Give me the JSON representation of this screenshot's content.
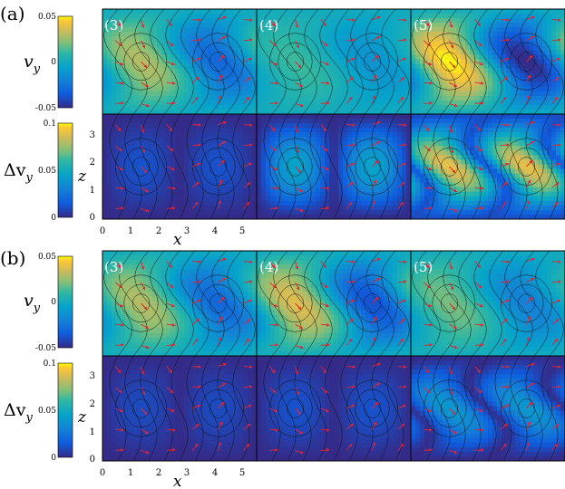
{
  "figure": {
    "panels": [
      {
        "label": "(a)",
        "top_colorbar": {
          "symbol": "v",
          "subscript": "y",
          "ticks": [
            "0.05",
            "0",
            "-0.05"
          ]
        },
        "bottom_colorbar": {
          "symbol": "Δv",
          "subscript": "y",
          "ticks": [
            "0.1",
            "0.05",
            "0"
          ]
        },
        "subplot_labels": [
          "(3)",
          "(4)",
          "(5)"
        ],
        "xlabel": "x",
        "ylabel": "z",
        "xticks": [
          "0",
          "1",
          "2",
          "3",
          "4",
          "5"
        ],
        "zticks": [
          "0",
          "1",
          "2",
          "3"
        ]
      },
      {
        "label": "(b)",
        "top_colorbar": {
          "symbol": "v",
          "subscript": "y",
          "ticks": [
            "0.05",
            "0",
            "-0.05"
          ]
        },
        "bottom_colorbar": {
          "symbol": "Δv",
          "subscript": "y",
          "ticks": [
            "0.1",
            "0.05",
            "0"
          ]
        },
        "subplot_labels": [
          "(3)",
          "(4)",
          "(5)"
        ],
        "xlabel": "x",
        "ylabel": "z",
        "xticks": [
          "0",
          "1",
          "2",
          "3",
          "4",
          "5"
        ],
        "zticks": [
          "0",
          "1",
          "2",
          "3"
        ]
      }
    ]
  },
  "chart_data": {
    "type": "heatmap",
    "colormap": "parula",
    "xlim": [
      0,
      5.5
    ],
    "zlim": [
      0,
      3.8
    ],
    "top_clim": [
      -0.05,
      0.05
    ],
    "bottom_clim": [
      0,
      0.1
    ],
    "arrow_color": "#e8222e",
    "contour_color": "#111111",
    "tiles": [
      {
        "panel": "(a)",
        "row": "top",
        "case": "(3)",
        "peak": 0.03,
        "bias": 0.0
      },
      {
        "panel": "(a)",
        "row": "top",
        "case": "(4)",
        "peak": 0.012,
        "bias": 0.0
      },
      {
        "panel": "(a)",
        "row": "top",
        "case": "(5)",
        "peak": 0.05,
        "bias": 0.0
      },
      {
        "panel": "(a)",
        "row": "bottom",
        "case": "(3)",
        "peak": 0.012,
        "bias": 0.0
      },
      {
        "panel": "(a)",
        "row": "bottom",
        "case": "(4)",
        "peak": 0.045,
        "bias": 0.0
      },
      {
        "panel": "(a)",
        "row": "bottom",
        "case": "(5)",
        "peak": 0.08,
        "bias": 0.01
      },
      {
        "panel": "(b)",
        "row": "top",
        "case": "(3)",
        "peak": 0.03,
        "bias": 0.0
      },
      {
        "panel": "(b)",
        "row": "top",
        "case": "(4)",
        "peak": 0.038,
        "bias": 0.0
      },
      {
        "panel": "(b)",
        "row": "top",
        "case": "(5)",
        "peak": 0.02,
        "bias": 0.0
      },
      {
        "panel": "(b)",
        "row": "bottom",
        "case": "(3)",
        "peak": 0.01,
        "bias": 0.0
      },
      {
        "panel": "(b)",
        "row": "bottom",
        "case": "(4)",
        "peak": 0.012,
        "bias": 0.0
      },
      {
        "panel": "(b)",
        "row": "bottom",
        "case": "(5)",
        "peak": 0.04,
        "bias": 0.0
      }
    ]
  }
}
